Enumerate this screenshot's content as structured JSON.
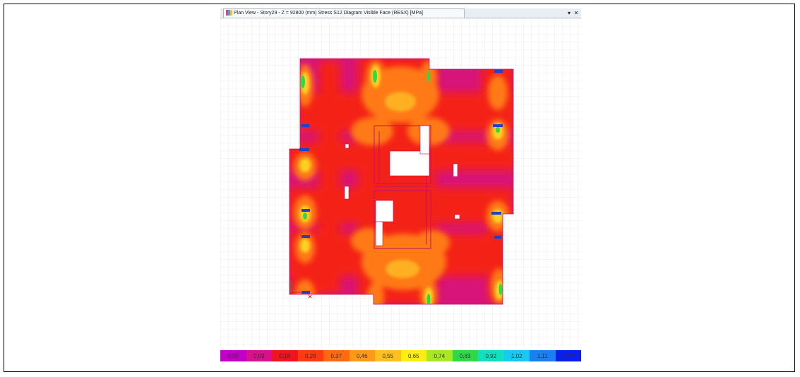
{
  "window": {
    "title": "Plan View - Story29 - Z = 92800 (mm)   Stress S12 Diagram  Visible Face   (RESX)  [MPa]",
    "dropdown_glyph": "▾",
    "close_glyph": "✕"
  },
  "legend": {
    "unit": "MPa",
    "items": [
      {
        "label": "0,00",
        "color": "#c000c8"
      },
      {
        "label": "0,09",
        "color": "#d8108c"
      },
      {
        "label": "0,18",
        "color": "#f0141e"
      },
      {
        "label": "0,28",
        "color": "#ff3a10"
      },
      {
        "label": "0,37",
        "color": "#ff6a10"
      },
      {
        "label": "0,46",
        "color": "#ff9a18"
      },
      {
        "label": "0,55",
        "color": "#ffc020"
      },
      {
        "label": "0,65",
        "color": "#ffee10"
      },
      {
        "label": "0,74",
        "color": "#a8e820"
      },
      {
        "label": "0,83",
        "color": "#30d848"
      },
      {
        "label": "0,92",
        "color": "#10e0c0"
      },
      {
        "label": "1,02",
        "color": "#18c8f0"
      },
      {
        "label": "1,11",
        "color": "#1880f0"
      },
      {
        "label": "1,20",
        "color": "#0a20e8"
      }
    ]
  },
  "colors": {
    "magenta": "#d8147a",
    "red": "#f42418",
    "orange": "#ff7a14",
    "yellow_orange": "#ffb020",
    "green": "#30d848",
    "blue_support": "#2040c8",
    "grid": "#e6e6e6"
  },
  "icons": [
    "plan-view-icon",
    "dropdown-icon",
    "close-icon",
    "axis-icon"
  ]
}
